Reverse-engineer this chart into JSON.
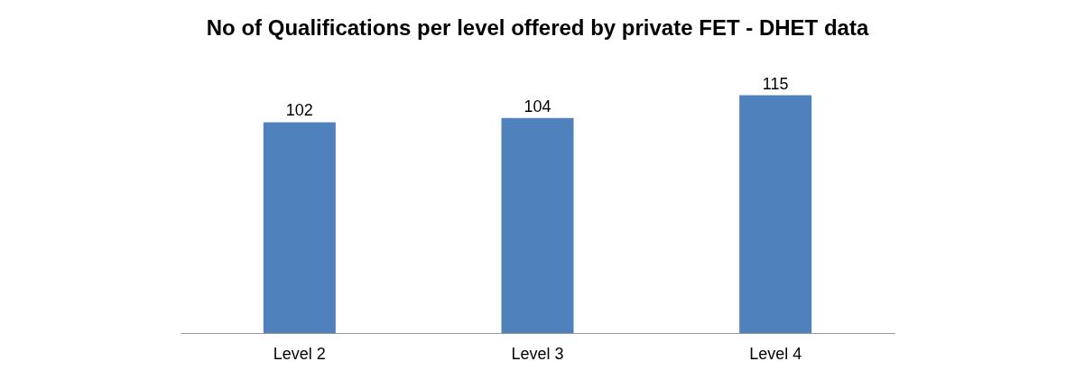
{
  "chart_data": {
    "type": "bar",
    "title": "No of Qualifications per level offered by private FET - DHET data",
    "categories": [
      "Level 2",
      "Level 3",
      "Level 4"
    ],
    "values": [
      102,
      104,
      115
    ],
    "color": "#4f81bd",
    "data_labels": true
  }
}
